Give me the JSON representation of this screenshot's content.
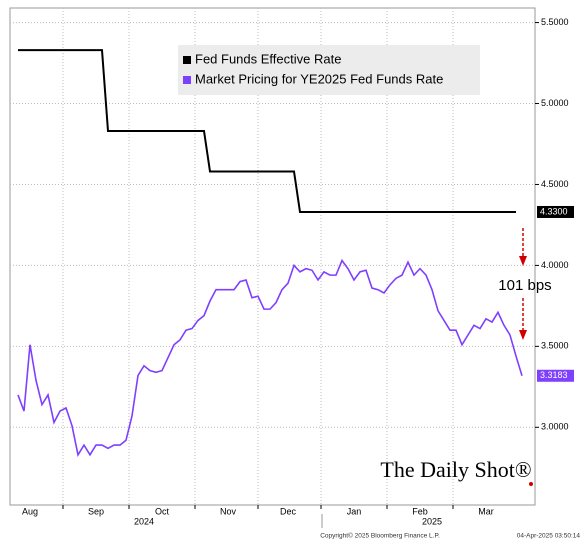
{
  "chart_data": {
    "type": "line",
    "categories": [
      null,
      null,
      "Aug",
      null,
      null,
      null,
      null,
      null,
      null,
      null,
      null,
      null,
      null,
      "Sep",
      null,
      null,
      null,
      null,
      null,
      null,
      null,
      null,
      null,
      null,
      "Oct",
      null,
      null,
      null,
      null,
      null,
      null,
      null,
      null,
      null,
      null,
      "Nov",
      null,
      null,
      null,
      null,
      null,
      null,
      null,
      null,
      null,
      "Dec",
      null,
      null,
      null,
      null,
      null,
      null,
      null,
      null,
      null,
      null,
      "Jan",
      null,
      null,
      null,
      null,
      null,
      null,
      null,
      null,
      null,
      null,
      "Feb",
      null,
      null,
      null,
      null,
      null,
      null,
      null,
      null,
      null,
      null,
      "Mar",
      null,
      null,
      null,
      null,
      null,
      null
    ],
    "x_group_labels": [
      "2024",
      "2025"
    ],
    "series": [
      {
        "name": "Fed Funds Effective Rate",
        "color": "#000000",
        "end_label": "4.3300",
        "values": [
          5.33,
          5.33,
          5.33,
          5.33,
          5.33,
          5.33,
          5.33,
          5.33,
          5.33,
          5.33,
          5.33,
          5.33,
          5.33,
          5.33,
          5.33,
          4.83,
          4.83,
          4.83,
          4.83,
          4.83,
          4.83,
          4.83,
          4.83,
          4.83,
          4.83,
          4.83,
          4.83,
          4.83,
          4.83,
          4.83,
          4.83,
          4.83,
          4.58,
          4.58,
          4.58,
          4.58,
          4.58,
          4.58,
          4.58,
          4.58,
          4.58,
          4.58,
          4.58,
          4.58,
          4.58,
          4.58,
          4.58,
          4.33,
          4.33,
          4.33,
          4.33,
          4.33,
          4.33,
          4.33,
          4.33,
          4.33,
          4.33,
          4.33,
          4.33,
          4.33,
          4.33,
          4.33,
          4.33,
          4.33,
          4.33,
          4.33,
          4.33,
          4.33,
          4.33,
          4.33,
          4.33,
          4.33,
          4.33,
          4.33,
          4.33,
          4.33,
          4.33,
          4.33,
          4.33,
          4.33,
          4.33,
          4.33,
          4.33,
          4.33,
          null
        ]
      },
      {
        "name": "Market Pricing for YE2025 Fed Funds Rate",
        "color": "#7f3fff",
        "end_label": "3.3183",
        "values": [
          3.2,
          3.1,
          3.51,
          3.29,
          3.14,
          3.2,
          3.03,
          3.1,
          3.12,
          3.01,
          2.83,
          2.89,
          2.83,
          2.89,
          2.89,
          2.87,
          2.89,
          2.89,
          2.92,
          3.07,
          3.32,
          3.38,
          3.35,
          3.34,
          3.35,
          3.43,
          3.51,
          3.54,
          3.6,
          3.61,
          3.66,
          3.69,
          3.78,
          3.85,
          3.85,
          3.85,
          3.85,
          3.9,
          3.91,
          3.8,
          3.81,
          3.73,
          3.73,
          3.77,
          3.85,
          3.89,
          4.0,
          3.96,
          3.98,
          3.97,
          3.91,
          3.96,
          3.94,
          3.94,
          4.03,
          3.98,
          3.91,
          3.96,
          3.97,
          3.86,
          3.85,
          3.83,
          3.88,
          3.92,
          3.94,
          4.02,
          3.94,
          3.98,
          3.94,
          3.85,
          3.72,
          3.66,
          3.6,
          3.6,
          3.51,
          3.57,
          3.63,
          3.61,
          3.67,
          3.65,
          3.71,
          3.63,
          3.57,
          3.44,
          3.3183
        ]
      }
    ],
    "ylim": [
      2.52,
      5.59
    ],
    "yticks": [
      {
        "value": 3,
        "label": "3.0000"
      },
      {
        "value": 3.5,
        "label": "3.5000"
      },
      {
        "value": 4,
        "label": "4.0000"
      },
      {
        "value": 4.5,
        "label": "4.5000"
      },
      {
        "value": 5,
        "label": "5.0000"
      },
      {
        "value": 5.5,
        "label": "5.5000"
      }
    ],
    "grid": true,
    "legend": "top",
    "annotation": "101 bps",
    "watermark": "The Daily Shot®",
    "copyright": "Copyright© 2025 Bloomberg Finance L.P.",
    "timestamp": "04-Apr-2025 03:50:14"
  }
}
